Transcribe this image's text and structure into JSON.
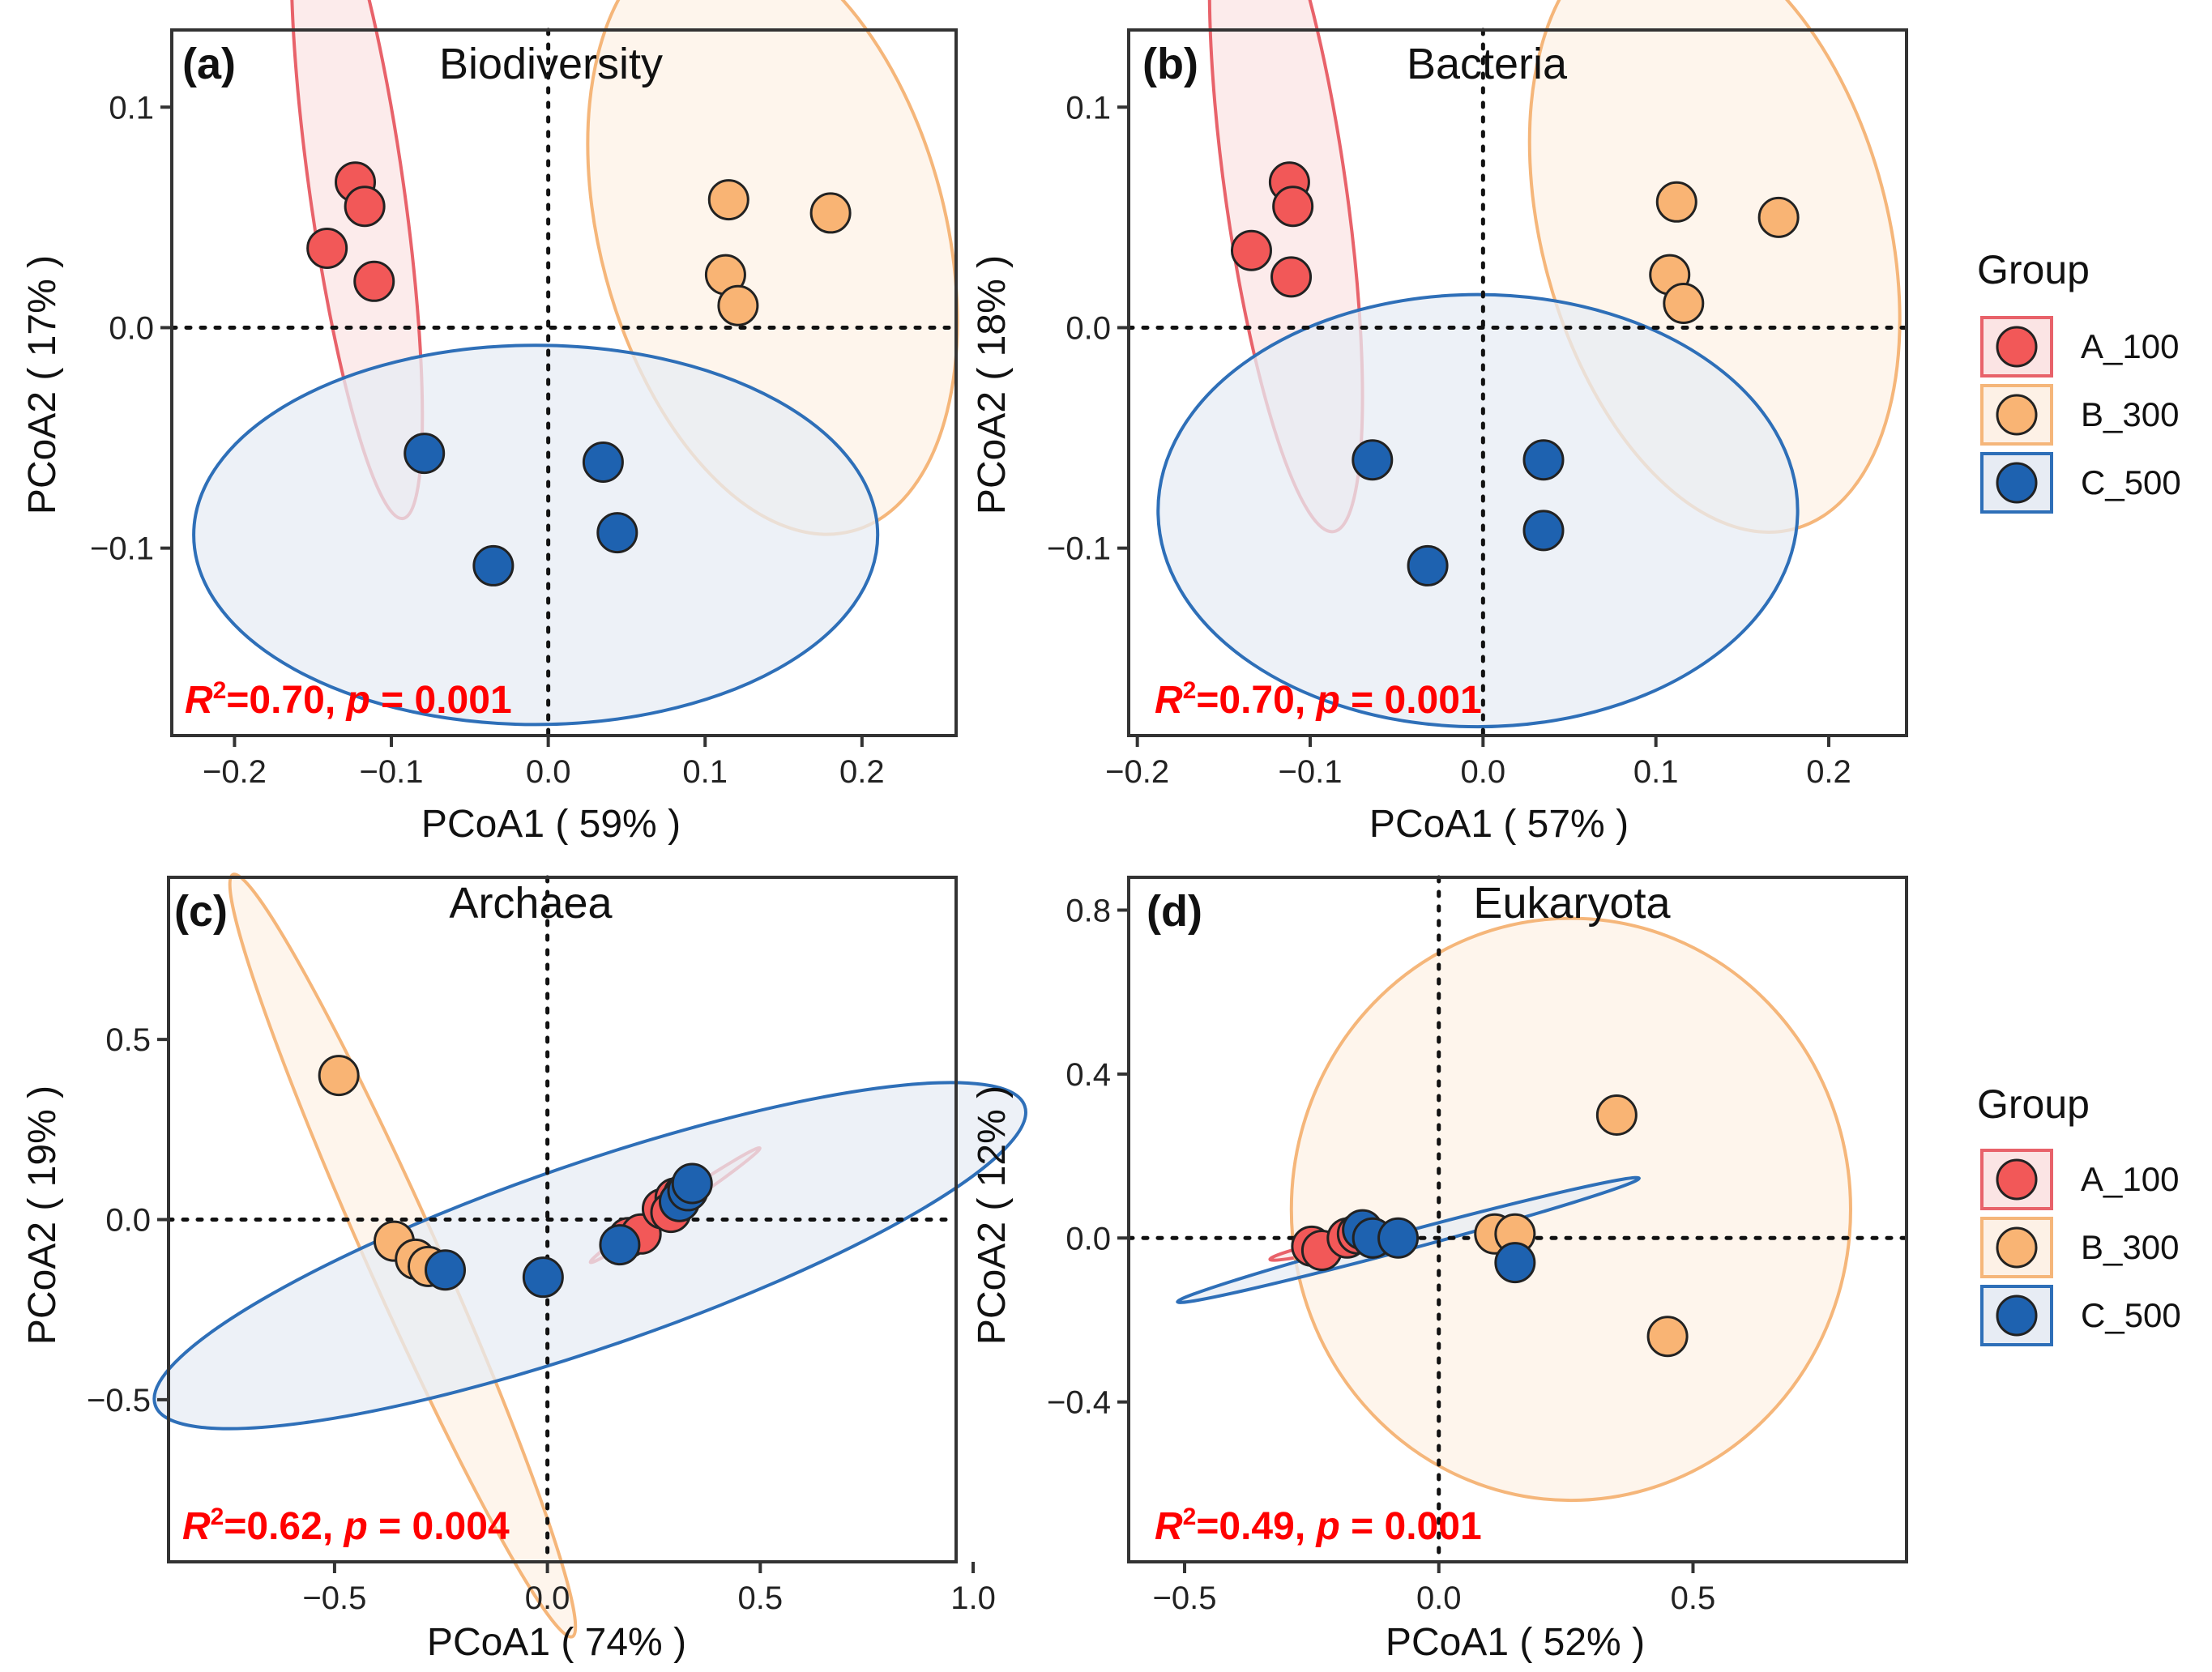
{
  "colors": {
    "A_100": {
      "stroke": "#e8626a",
      "fill": "#f25858",
      "ellipse_fill": "#fbe4e4"
    },
    "B_300": {
      "stroke": "#f5b67a",
      "fill": "#f9b474",
      "ellipse_fill": "#fdf1e6"
    },
    "C_500": {
      "stroke": "#2e6fb8",
      "fill": "#1e62b0",
      "ellipse_fill": "#e7ecf4"
    },
    "stat": "#ff0000"
  },
  "legend": {
    "title": "Group",
    "items": [
      "A_100",
      "B_300",
      "C_500"
    ]
  },
  "chart_data": [
    {
      "type": "scatter",
      "label": "(a)",
      "title": "Biodiversity",
      "xlabel": "PCoA1 ( 59% )",
      "ylabel": "PCoA2 ( 17% )",
      "xlim": [
        -0.24,
        0.26
      ],
      "ylim": [
        -0.185,
        0.135
      ],
      "xticks": [
        -0.2,
        -0.1,
        0.0,
        0.1,
        0.2
      ],
      "xtick_labels": [
        "−0.2",
        "−0.1",
        "0.0",
        "0.1",
        "0.2"
      ],
      "yticks": [
        -0.1,
        0.0,
        0.1
      ],
      "ytick_labels": [
        "−0.1",
        "0.0",
        "0.1"
      ],
      "stat_r2": "=0.70, ",
      "stat_p": " = 0.001",
      "series": [
        {
          "name": "A_100",
          "x": [
            -0.123,
            -0.117,
            -0.141,
            -0.111
          ],
          "y": [
            0.066,
            0.055,
            0.036,
            0.021
          ],
          "ellipse": {
            "cx": -0.122,
            "cy": 0.062,
            "rx": 0.03,
            "ry": 0.15,
            "angle": 8
          }
        },
        {
          "name": "B_300",
          "x": [
            0.115,
            0.18,
            0.113,
            0.121
          ],
          "y": [
            0.058,
            0.052,
            0.024,
            0.01
          ],
          "ellipse": {
            "cx": 0.143,
            "cy": 0.043,
            "rx": 0.11,
            "ry": 0.14,
            "angle": 15
          }
        },
        {
          "name": "C_500",
          "x": [
            -0.079,
            0.035,
            0.044,
            -0.035
          ],
          "y": [
            -0.057,
            -0.061,
            -0.093,
            -0.108
          ],
          "ellipse": {
            "cx": -0.008,
            "cy": -0.094,
            "rx": 0.218,
            "ry": 0.086,
            "angle": 0
          }
        }
      ]
    },
    {
      "type": "scatter",
      "label": "(b)",
      "title": "Bacteria",
      "xlabel": "PCoA1 ( 57% )",
      "ylabel": "PCoA2 ( 18% )",
      "xlim": [
        -0.205,
        0.245
      ],
      "ylim": [
        -0.185,
        0.135
      ],
      "xticks": [
        -0.2,
        -0.1,
        0.0,
        0.1,
        0.2
      ],
      "xtick_labels": [
        "−0.2",
        "−0.1",
        "0.0",
        "0.1",
        "0.2"
      ],
      "yticks": [
        -0.1,
        0.0,
        0.1
      ],
      "ytick_labels": [
        "−0.1",
        "0.0",
        "0.1"
      ],
      "stat_r2": "=0.70, ",
      "stat_p": " = 0.001",
      "series": [
        {
          "name": "A_100",
          "x": [
            -0.112,
            -0.11,
            -0.134,
            -0.111
          ],
          "y": [
            0.066,
            0.055,
            0.035,
            0.023
          ],
          "ellipse": {
            "cx": -0.114,
            "cy": 0.061,
            "rx": 0.035,
            "ry": 0.155,
            "angle": 8
          }
        },
        {
          "name": "B_300",
          "x": [
            0.112,
            0.171,
            0.108,
            0.116
          ],
          "y": [
            0.057,
            0.05,
            0.024,
            0.011
          ],
          "ellipse": {
            "cx": 0.134,
            "cy": 0.044,
            "rx": 0.1,
            "ry": 0.14,
            "angle": 15
          }
        },
        {
          "name": "C_500",
          "x": [
            -0.064,
            0.035,
            0.035,
            -0.032
          ],
          "y": [
            -0.06,
            -0.06,
            -0.092,
            -0.108
          ],
          "ellipse": {
            "cx": -0.003,
            "cy": -0.083,
            "rx": 0.185,
            "ry": 0.098,
            "angle": 0
          }
        }
      ]
    },
    {
      "type": "scatter",
      "label": "(c)",
      "title": "Archaea",
      "xlabel": "PCoA1 ( 74% )",
      "ylabel": "PCoA2 ( 19% )",
      "xlim": [
        -0.89,
        0.96
      ],
      "ylim": [
        -0.95,
        0.95
      ],
      "xticks": [
        -0.5,
        0.0,
        0.5,
        1.0
      ],
      "xtick_labels": [
        "−0.5",
        "0.0",
        "0.5",
        "1.0"
      ],
      "yticks": [
        -0.5,
        0.0,
        0.5
      ],
      "ytick_labels": [
        "−0.5",
        "0.0",
        "0.5"
      ],
      "stat_r2": "=0.62, ",
      "stat_p": " = 0.004",
      "series": [
        {
          "name": "A_100",
          "x": [
            0.19,
            0.22,
            0.27,
            0.3,
            0.32,
            0.29
          ],
          "y": [
            -0.05,
            -0.04,
            0.03,
            0.06,
            0.07,
            0.02
          ],
          "ellipse": {
            "cx": 0.3,
            "cy": 0.04,
            "rx": 0.24,
            "ry": 0.016,
            "angle": 34
          }
        },
        {
          "name": "B_300",
          "x": [
            -0.49,
            -0.36,
            -0.31,
            -0.28
          ],
          "y": [
            0.4,
            -0.06,
            -0.11,
            -0.13
          ],
          "ellipse": {
            "cx": -0.34,
            "cy": -0.1,
            "rx": 0.98,
            "ry": 0.1,
            "angle": -66
          }
        },
        {
          "name": "C_500",
          "x": [
            -0.24,
            -0.01,
            0.17,
            0.31,
            0.33,
            0.34
          ],
          "y": [
            -0.14,
            -0.16,
            -0.07,
            0.05,
            0.08,
            0.1
          ],
          "ellipse": {
            "cx": 0.1,
            "cy": -0.1,
            "rx": 1.08,
            "ry": 0.255,
            "angle": 19
          }
        }
      ]
    },
    {
      "type": "scatter",
      "label": "(d)",
      "title": "Eukaryota",
      "xlabel": "PCoA1 ( 52% )",
      "ylabel": "PCoA2 ( 12% )",
      "xlim": [
        -0.61,
        0.92
      ],
      "ylim": [
        -0.79,
        0.88
      ],
      "xticks": [
        -0.5,
        0.0,
        0.5
      ],
      "xtick_labels": [
        "−0.5",
        "0.0",
        "0.5"
      ],
      "yticks": [
        -0.4,
        0.0,
        0.4,
        0.8
      ],
      "ytick_labels": [
        "−0.4",
        "0.0",
        "0.4",
        "0.8"
      ],
      "stat_r2": "=0.49, ",
      "stat_p": " = 0.001",
      "series": [
        {
          "name": "A_100",
          "x": [
            -0.25,
            -0.23,
            -0.18,
            -0.16,
            -0.13
          ],
          "y": [
            -0.02,
            -0.03,
            0.0,
            0.01,
            0.0
          ],
          "ellipse": {
            "cx": -0.22,
            "cy": -0.02,
            "rx": 0.115,
            "ry": 0.012,
            "angle": 13
          }
        },
        {
          "name": "B_300",
          "x": [
            0.35,
            0.11,
            0.15,
            0.45
          ],
          "y": [
            0.3,
            0.01,
            0.01,
            -0.24
          ],
          "ellipse": {
            "cx": 0.26,
            "cy": 0.07,
            "rx": 0.55,
            "ry": 0.71,
            "angle": 0
          }
        },
        {
          "name": "C_500",
          "x": [
            -0.15,
            -0.13,
            -0.08,
            0.15
          ],
          "y": [
            0.02,
            0.0,
            0.0,
            -0.06
          ],
          "ellipse": {
            "cx": -0.06,
            "cy": -0.005,
            "rx": 0.47,
            "ry": 0.022,
            "angle": 15
          }
        }
      ]
    }
  ]
}
